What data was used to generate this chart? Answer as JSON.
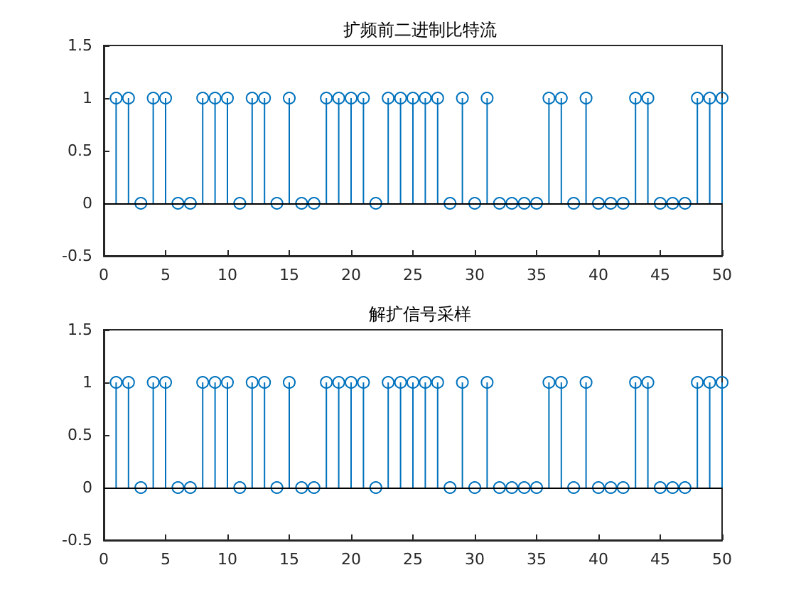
{
  "chart_data": [
    {
      "type": "lollipop",
      "title": "扩频前二进制比特流",
      "x": [
        1,
        2,
        3,
        4,
        5,
        6,
        7,
        8,
        9,
        10,
        11,
        12,
        13,
        14,
        15,
        16,
        17,
        18,
        19,
        20,
        21,
        22,
        23,
        24,
        25,
        26,
        27,
        28,
        29,
        30,
        31,
        32,
        33,
        34,
        35,
        36,
        37,
        38,
        39,
        40,
        41,
        42,
        43,
        44,
        45,
        46,
        47,
        48,
        49,
        50
      ],
      "values": [
        1,
        1,
        0,
        1,
        1,
        0,
        0,
        1,
        1,
        1,
        0,
        1,
        1,
        0,
        1,
        0,
        0,
        1,
        1,
        1,
        1,
        0,
        1,
        1,
        1,
        1,
        1,
        0,
        1,
        0,
        1,
        0,
        0,
        0,
        0,
        1,
        1,
        0,
        1,
        0,
        0,
        0,
        1,
        1,
        0,
        0,
        0,
        1,
        1,
        1
      ],
      "color": "#0072bd",
      "marker": "circle",
      "xlim": [
        0,
        50
      ],
      "xticks": [
        0,
        5,
        10,
        15,
        20,
        25,
        30,
        35,
        40,
        45,
        50
      ],
      "ylim": [
        -0.5,
        1.5
      ],
      "yticks": [
        -0.5,
        0,
        0.5,
        1,
        1.5
      ],
      "grid": false,
      "ref_lines": [
        {
          "axis": "y",
          "value": 0,
          "color": "#000000"
        }
      ]
    },
    {
      "type": "lollipop",
      "title": "解扩信号采样",
      "x": [
        1,
        2,
        3,
        4,
        5,
        6,
        7,
        8,
        9,
        10,
        11,
        12,
        13,
        14,
        15,
        16,
        17,
        18,
        19,
        20,
        21,
        22,
        23,
        24,
        25,
        26,
        27,
        28,
        29,
        30,
        31,
        32,
        33,
        34,
        35,
        36,
        37,
        38,
        39,
        40,
        41,
        42,
        43,
        44,
        45,
        46,
        47,
        48,
        49,
        50
      ],
      "values": [
        1,
        1,
        0,
        1,
        1,
        0,
        0,
        1,
        1,
        1,
        0,
        1,
        1,
        0,
        1,
        0,
        0,
        1,
        1,
        1,
        1,
        0,
        1,
        1,
        1,
        1,
        1,
        0,
        1,
        0,
        1,
        0,
        0,
        0,
        0,
        1,
        1,
        0,
        1,
        0,
        0,
        0,
        1,
        1,
        0,
        0,
        0,
        1,
        1,
        1
      ],
      "color": "#0072bd",
      "marker": "circle",
      "xlim": [
        0,
        50
      ],
      "xticks": [
        0,
        5,
        10,
        15,
        20,
        25,
        30,
        35,
        40,
        45,
        50
      ],
      "ylim": [
        -0.5,
        1.5
      ],
      "yticks": [
        -0.5,
        0,
        0.5,
        1,
        1.5
      ],
      "grid": false,
      "ref_lines": [
        {
          "axis": "y",
          "value": 0,
          "color": "#000000"
        }
      ]
    }
  ]
}
